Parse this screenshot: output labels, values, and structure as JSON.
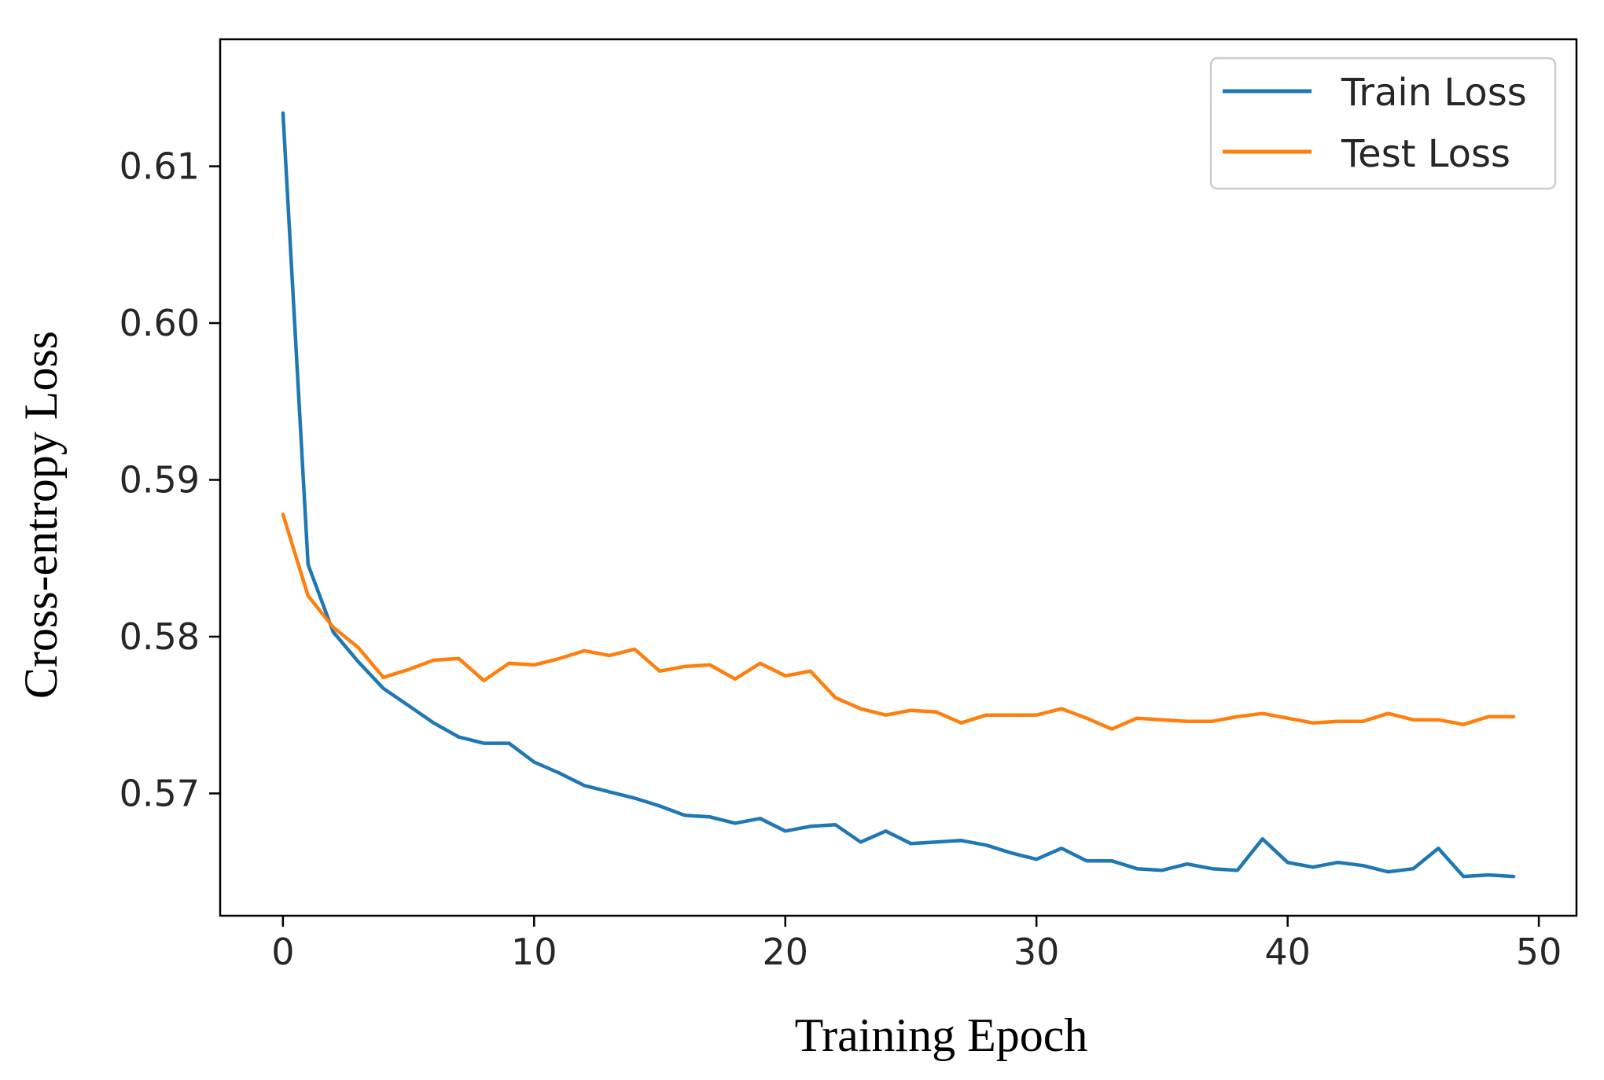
{
  "chart_data": {
    "type": "line",
    "title": "",
    "xlabel": "Training Epoch",
    "ylabel": "Cross-entropy Loss",
    "xlim": [
      -2.5,
      51.5
    ],
    "ylim": [
      0.5622,
      0.6181
    ],
    "xticks": [
      0,
      10,
      20,
      30,
      40,
      50
    ],
    "xtick_labels": [
      "0",
      "10",
      "20",
      "30",
      "40",
      "50"
    ],
    "yticks": [
      0.57,
      0.58,
      0.59,
      0.6,
      0.61
    ],
    "ytick_labels": [
      "0.57",
      "0.58",
      "0.59",
      "0.60",
      "0.61"
    ],
    "grid": false,
    "legend_position": "top-right",
    "x": [
      0,
      1,
      2,
      3,
      4,
      5,
      6,
      7,
      8,
      9,
      10,
      11,
      12,
      13,
      14,
      15,
      16,
      17,
      18,
      19,
      20,
      21,
      22,
      23,
      24,
      25,
      26,
      27,
      28,
      29,
      30,
      31,
      32,
      33,
      34,
      35,
      36,
      37,
      38,
      39,
      40,
      41,
      42,
      43,
      44,
      45,
      46,
      47,
      48,
      49
    ],
    "series": [
      {
        "name": "Train Loss",
        "color": "#1f77b4",
        "values": [
          0.6134,
          0.5846,
          0.5803,
          0.5784,
          0.5767,
          0.5756,
          0.5745,
          0.5736,
          0.5732,
          0.5732,
          0.572,
          0.5713,
          0.5705,
          0.5701,
          0.5697,
          0.5692,
          0.5686,
          0.5685,
          0.5681,
          0.5684,
          0.5676,
          0.5679,
          0.568,
          0.5669,
          0.5676,
          0.5668,
          0.5669,
          0.567,
          0.5667,
          0.5662,
          0.5658,
          0.5665,
          0.5657,
          0.5657,
          0.5652,
          0.5651,
          0.5655,
          0.5652,
          0.5651,
          0.5671,
          0.5656,
          0.5653,
          0.5656,
          0.5654,
          0.565,
          0.5652,
          0.5665,
          0.5647,
          0.5648,
          0.5647
        ]
      },
      {
        "name": "Test Loss",
        "color": "#ff7f0e",
        "values": [
          0.5878,
          0.5826,
          0.5806,
          0.5793,
          0.5774,
          0.5779,
          0.5785,
          0.5786,
          0.5772,
          0.5783,
          0.5782,
          0.5786,
          0.5791,
          0.5788,
          0.5792,
          0.5778,
          0.5781,
          0.5782,
          0.5773,
          0.5783,
          0.5775,
          0.5778,
          0.5761,
          0.5754,
          0.575,
          0.5753,
          0.5752,
          0.5745,
          0.575,
          0.575,
          0.575,
          0.5754,
          0.5748,
          0.5741,
          0.5748,
          0.5747,
          0.5746,
          0.5746,
          0.5749,
          0.5751,
          0.5748,
          0.5745,
          0.5746,
          0.5746,
          0.5751,
          0.5747,
          0.5747,
          0.5744,
          0.5749,
          0.5749
        ]
      }
    ]
  }
}
